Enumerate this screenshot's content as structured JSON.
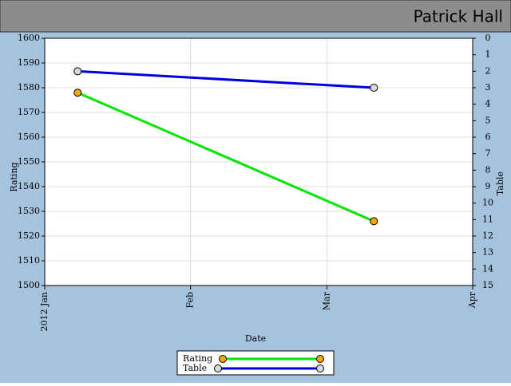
{
  "header": {
    "title": "Patrick Hall"
  },
  "chart_data": {
    "type": "line",
    "x_label": "Date",
    "y_label": "Rating",
    "y2_label": "Table",
    "x": [
      7,
      70
    ],
    "xlim": [
      0,
      91
    ],
    "xticks": [
      {
        "value": 0,
        "label": "2012 Jan"
      },
      {
        "value": 31,
        "label": "Feb"
      },
      {
        "value": 60,
        "label": "Mar"
      },
      {
        "value": 91,
        "label": "Apr"
      }
    ],
    "ylim": [
      1500,
      1600
    ],
    "yticks": [
      1500,
      1510,
      1520,
      1530,
      1540,
      1550,
      1560,
      1570,
      1580,
      1590,
      1600
    ],
    "y2lim": [
      15,
      0
    ],
    "y2ticks": [
      0,
      1,
      2,
      3,
      4,
      5,
      6,
      7,
      8,
      9,
      10,
      11,
      12,
      13,
      14,
      15
    ],
    "grid": true,
    "legend": "bottom",
    "series": [
      {
        "name": "Rating",
        "color": "#00e600",
        "marker_color": "#f5a800",
        "values": [
          1578,
          1526
        ]
      },
      {
        "name": "Table",
        "color": "#0000dd",
        "marker_color": "#d8d8d8",
        "values": [
          2,
          3
        ],
        "axis": "y2"
      }
    ]
  }
}
